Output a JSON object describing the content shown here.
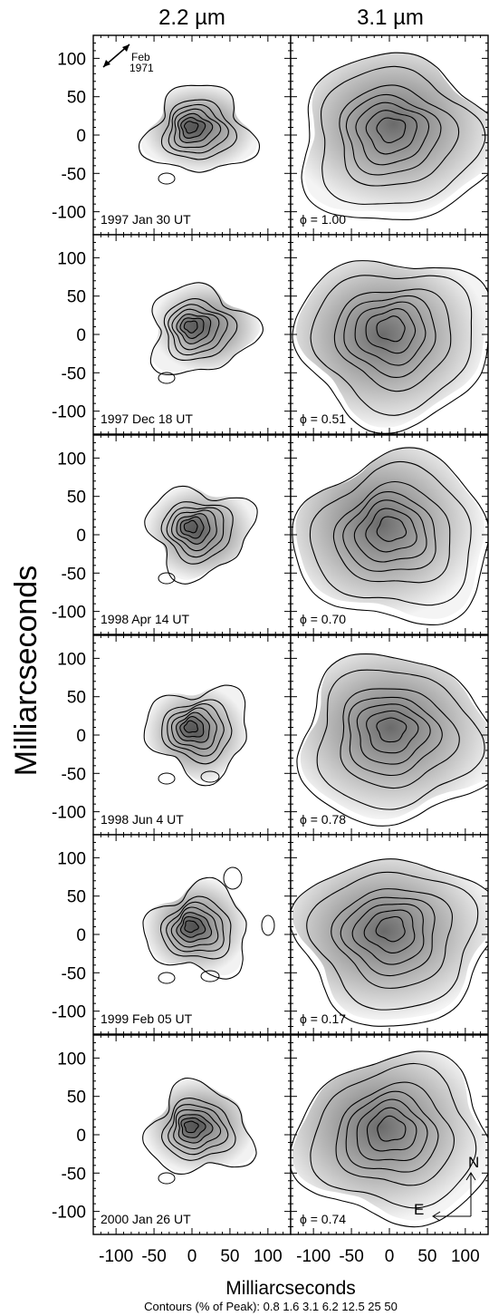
{
  "columns": [
    "2.2 µm",
    "3.1 µm"
  ],
  "y_axis_label": "Milliarcseconds",
  "x_axis_label": "Milliarcseconds",
  "y_ticks": [
    "100",
    "50",
    "0",
    "-50",
    "-100"
  ],
  "x_ticks": [
    "-100",
    "-50",
    "0",
    "50",
    "100"
  ],
  "orientation_arrow": {
    "label_line1": "Feb",
    "label_line2": "1971"
  },
  "compass": {
    "north": "N",
    "east": "E"
  },
  "contour_levels_label": "Contours (% of Peak): 0.8  1.6  3.1  6.2 12.5  25  50",
  "rows": [
    {
      "date": "1997 Jan 30 UT",
      "phase": "ϕ = 1.00"
    },
    {
      "date": "1997 Dec 18 UT",
      "phase": "ϕ = 0.51"
    },
    {
      "date": "1998 Apr 14 UT",
      "phase": "ϕ = 0.70"
    },
    {
      "date": "1998 Jun 4 UT",
      "phase": "ϕ = 0.78"
    },
    {
      "date": "1999 Feb 05 UT",
      "phase": "ϕ = 0.17"
    },
    {
      "date": "2000 Jan 26 UT",
      "phase": "ϕ = 0.74"
    }
  ],
  "chart_data": {
    "type": "heatmap",
    "description_units": "milliarcseconds",
    "xlim": [
      -130,
      130
    ],
    "ylim": [
      -130,
      130
    ],
    "x_ticks": [
      -100,
      -50,
      0,
      50,
      100
    ],
    "y_ticks": [
      -100,
      -50,
      0,
      50,
      100
    ],
    "contour_levels_percent_of_peak": [
      0.8,
      1.6,
      3.1,
      6.2,
      12.5,
      25,
      50
    ],
    "columns": [
      "2.2 µm",
      "3.1 µm"
    ],
    "rows": [
      "1997 Jan 30 UT",
      "1997 Dec 18 UT",
      "1998 Apr 14 UT",
      "1998 Jun 4 UT",
      "1999 Feb 05 UT",
      "2000 Jan 26 UT"
    ],
    "phases": [
      "1.00",
      "0.51",
      "0.70",
      "0.78",
      "0.17",
      "0.74"
    ]
  }
}
